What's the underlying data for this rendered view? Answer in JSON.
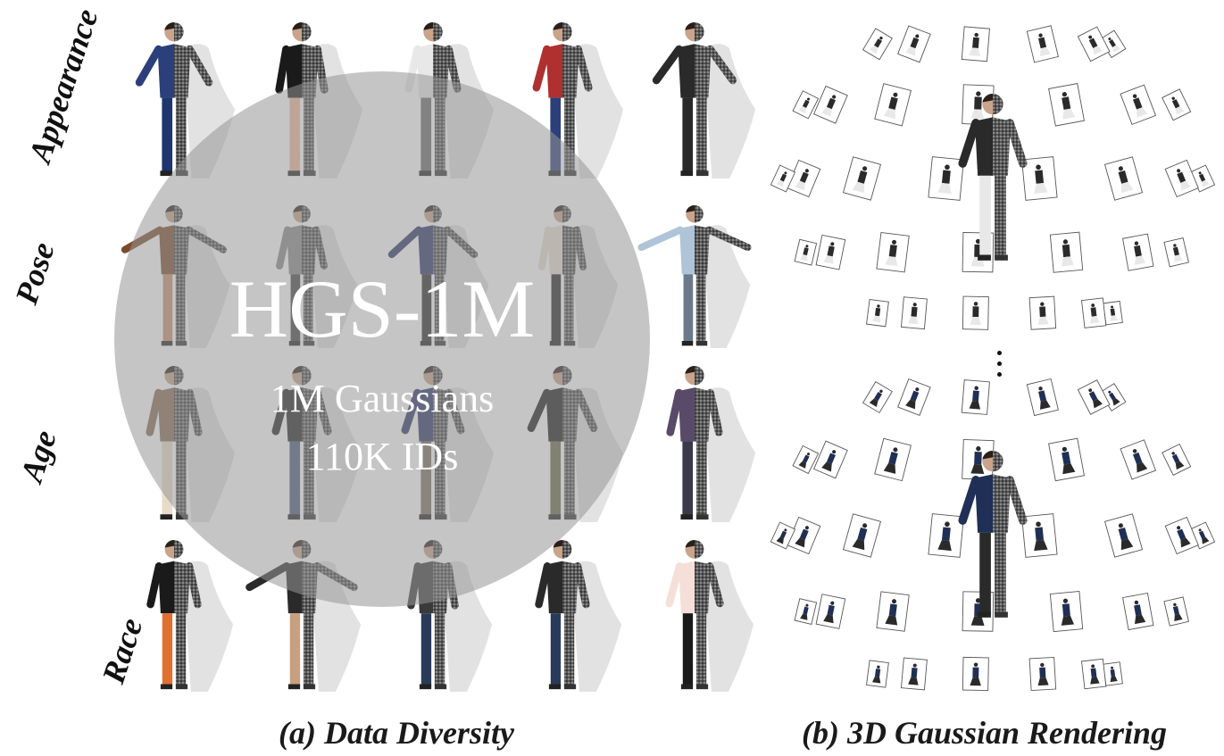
{
  "figure": {
    "row_labels": [
      "Appearance",
      "Pose",
      "Age",
      "Race"
    ],
    "overlay": {
      "title": "HGS-1M",
      "line1": "1M Gaussians",
      "line2": "110K IDs"
    },
    "captions": {
      "left": "(a) Data Diversity",
      "right": "(b) 3D Gaussian Rendering"
    }
  }
}
